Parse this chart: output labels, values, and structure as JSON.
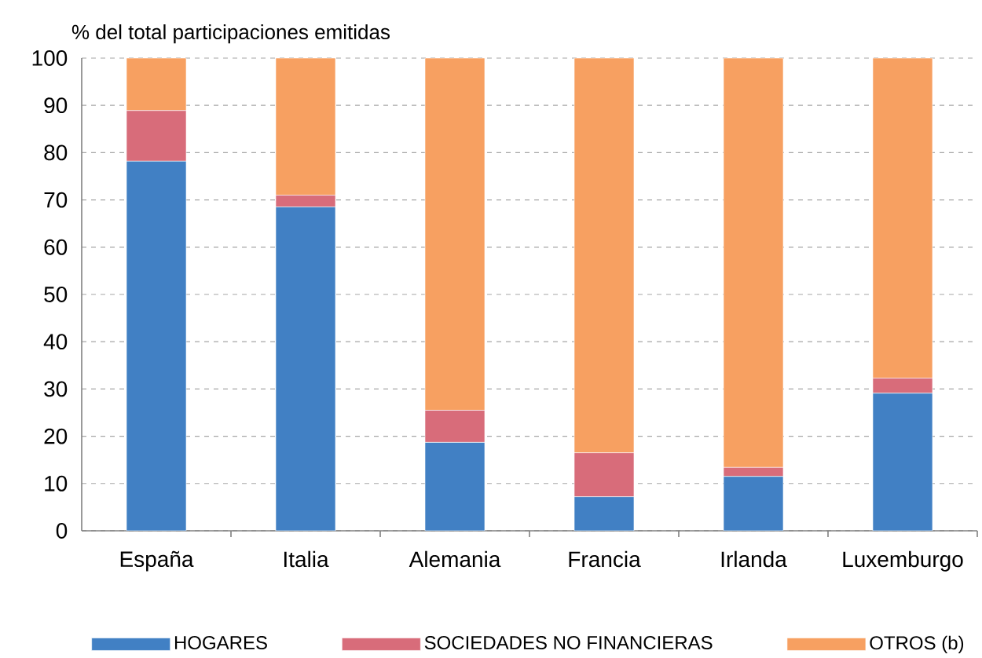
{
  "chart_data": {
    "type": "bar",
    "stacked": true,
    "ylabel": "% del total participaciones emitidas",
    "categories": [
      "España",
      "Italia",
      "Alemania",
      "Francia",
      "Irlanda",
      "Luxemburgo"
    ],
    "series": [
      {
        "name": "HOGARES",
        "color": "#4180c4",
        "values": [
          78.2,
          68.5,
          18.7,
          7.2,
          11.5,
          29.1
        ]
      },
      {
        "name": "SOCIEDADES NO FINANCIERAS",
        "color": "#d86c7a",
        "values": [
          10.7,
          2.5,
          6.8,
          9.3,
          1.9,
          3.2
        ]
      },
      {
        "name": "OTROS (b)",
        "color": "#f7a061",
        "values": [
          11.1,
          29.0,
          74.5,
          83.5,
          86.6,
          67.7
        ]
      }
    ],
    "ylim": [
      0,
      100
    ],
    "yticks": [
      0,
      10,
      20,
      30,
      40,
      50,
      60,
      70,
      80,
      90,
      100
    ],
    "grid": "y",
    "legend": "bottom"
  }
}
